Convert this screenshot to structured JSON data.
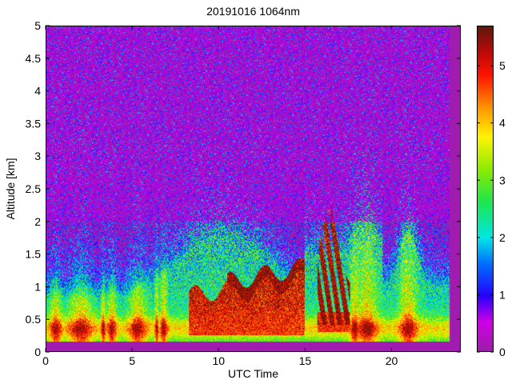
{
  "chart_data": {
    "type": "heatmap",
    "title": "20191016 1064nm",
    "xlabel": "UTC Time",
    "ylabel": "Altitude [km]",
    "xlim": [
      0,
      24
    ],
    "ylim": [
      0,
      5
    ],
    "xticks": [
      "0",
      "5",
      "10",
      "15",
      "20"
    ],
    "yticks": [
      "0",
      "0.5",
      "1",
      "1.5",
      "2",
      "2.5",
      "3",
      "3.5",
      "4",
      "4.5",
      "5"
    ],
    "colorbar": {
      "range": [
        0,
        5.7
      ],
      "ticks": [
        "0",
        "1",
        "2",
        "3",
        "4",
        "5"
      ],
      "colormap": "purple-blue-cyan-green-yellow-orange-red-darkred"
    },
    "colors": {
      "low": "#9b1fa8",
      "high": "#5a1a0a",
      "background": "#ffffff"
    }
  }
}
